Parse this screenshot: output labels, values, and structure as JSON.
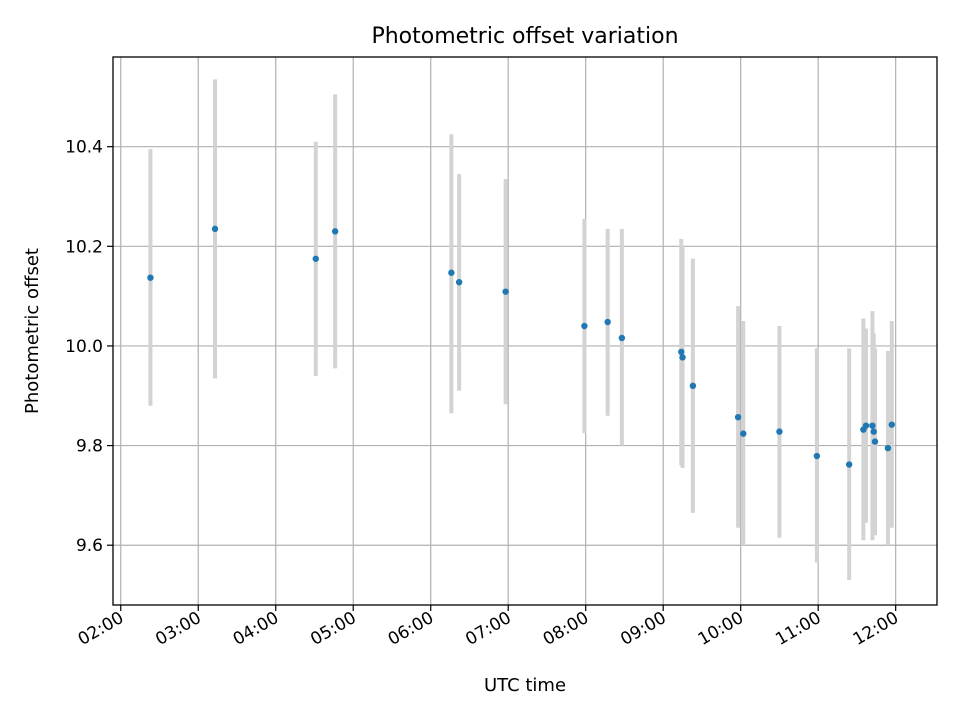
{
  "chart_data": {
    "type": "scatter",
    "title": "Photometric offset variation",
    "xlabel": "UTC time",
    "ylabel": "Photometric offset",
    "x_is_time": true,
    "xlim": [
      "01:54",
      "12:32"
    ],
    "ylim": [
      9.48,
      10.58
    ],
    "xticks": [
      "02:00",
      "03:00",
      "04:00",
      "05:00",
      "06:00",
      "07:00",
      "08:00",
      "09:00",
      "10:00",
      "11:00",
      "12:00"
    ],
    "yticks": [
      9.6,
      9.8,
      10.0,
      10.2,
      10.4
    ],
    "ytick_labels": [
      "9.6",
      "9.8",
      "10.0",
      "10.2",
      "10.4"
    ],
    "grid": true,
    "point_color": "#1f77b4",
    "errorbar_color": "#d3d3d3",
    "points": [
      {
        "t": "02:23",
        "y": 10.137,
        "lo": 9.88,
        "hi": 10.395
      },
      {
        "t": "03:13",
        "y": 10.235,
        "lo": 9.935,
        "hi": 10.535
      },
      {
        "t": "04:31",
        "y": 10.175,
        "lo": 9.94,
        "hi": 10.41
      },
      {
        "t": "04:46",
        "y": 10.23,
        "lo": 9.955,
        "hi": 10.505
      },
      {
        "t": "06:16",
        "y": 10.147,
        "lo": 9.865,
        "hi": 10.425
      },
      {
        "t": "06:22",
        "y": 10.128,
        "lo": 9.91,
        "hi": 10.345
      },
      {
        "t": "06:58",
        "y": 10.109,
        "lo": 9.883,
        "hi": 10.335
      },
      {
        "t": "07:59",
        "y": 10.04,
        "lo": 9.825,
        "hi": 10.255
      },
      {
        "t": "08:17",
        "y": 10.048,
        "lo": 9.86,
        "hi": 10.235
      },
      {
        "t": "08:28",
        "y": 10.016,
        "lo": 9.8,
        "hi": 10.235
      },
      {
        "t": "09:14",
        "y": 9.988,
        "lo": 9.76,
        "hi": 10.215
      },
      {
        "t": "09:15",
        "y": 9.977,
        "lo": 9.755,
        "hi": 10.2
      },
      {
        "t": "09:23",
        "y": 9.92,
        "lo": 9.665,
        "hi": 10.175
      },
      {
        "t": "09:58",
        "y": 9.857,
        "lo": 9.635,
        "hi": 10.08
      },
      {
        "t": "10:02",
        "y": 9.824,
        "lo": 9.6,
        "hi": 10.05
      },
      {
        "t": "10:30",
        "y": 9.828,
        "lo": 9.615,
        "hi": 10.04
      },
      {
        "t": "10:59",
        "y": 9.779,
        "lo": 9.565,
        "hi": 9.995
      },
      {
        "t": "11:24",
        "y": 9.762,
        "lo": 9.53,
        "hi": 9.995
      },
      {
        "t": "11:35",
        "y": 9.832,
        "lo": 9.61,
        "hi": 10.055
      },
      {
        "t": "11:37",
        "y": 9.84,
        "lo": 9.645,
        "hi": 10.035
      },
      {
        "t": "11:42",
        "y": 9.84,
        "lo": 9.61,
        "hi": 10.07
      },
      {
        "t": "11:43",
        "y": 9.828,
        "lo": 9.625,
        "hi": 10.025
      },
      {
        "t": "11:44",
        "y": 9.808,
        "lo": 9.62,
        "hi": 9.995
      },
      {
        "t": "11:54",
        "y": 9.795,
        "lo": 9.6,
        "hi": 9.99
      },
      {
        "t": "11:57",
        "y": 9.842,
        "lo": 9.635,
        "hi": 10.05
      }
    ]
  }
}
